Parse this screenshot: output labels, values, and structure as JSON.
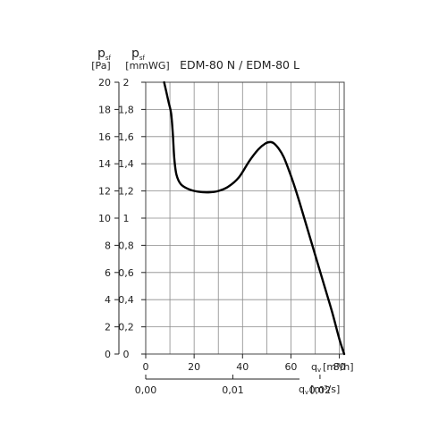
{
  "chart_data": {
    "type": "line",
    "title": "EDM-80 N / EDM-80 L",
    "y_primary": {
      "label_main": "p",
      "label_sub": "sf",
      "unit": "[Pa]",
      "ylim": [
        0,
        20
      ],
      "ticks": [
        "0",
        "2",
        "4",
        "6",
        "8",
        "10",
        "12",
        "14",
        "16",
        "18",
        "20"
      ]
    },
    "y_secondary": {
      "label_main": "p",
      "label_sub": "sf",
      "unit": "[mmWG]",
      "ticks": [
        "0",
        "0,2",
        "0,4",
        "0,6",
        "0,8",
        "1",
        "1,2",
        "1,4",
        "1,6",
        "1,8",
        "2"
      ]
    },
    "x_primary": {
      "label_main": "q",
      "label_sub": "v",
      "unit": "[m³/h]",
      "xlim": [
        0,
        82
      ],
      "ticks": [
        {
          "value": 0,
          "label": "0"
        },
        {
          "value": 20,
          "label": "20"
        },
        {
          "value": 40,
          "label": "40"
        },
        {
          "value": 60,
          "label": "60"
        },
        {
          "value": 80,
          "label": "80"
        }
      ]
    },
    "x_secondary": {
      "label_main": "q",
      "label_sub": "v",
      "unit": "[m³/s]",
      "ticks": [
        {
          "value": 0,
          "label": "0,00"
        },
        {
          "value": 36,
          "label": "0,01"
        },
        {
          "value": 72,
          "label": "0,02"
        }
      ]
    },
    "grid": true,
    "series": [
      {
        "color": "#000000",
        "x": [
          7.6,
          8.5,
          9.5,
          10.5,
          11.2,
          11.8,
          12.7,
          14.5,
          17.5,
          21.5,
          26,
          30,
          34,
          38.5,
          42.8,
          46.5,
          49.5,
          51.5,
          53,
          55,
          57,
          59,
          61,
          63.5,
          66.5,
          70,
          73.5,
          77,
          80,
          82
        ],
        "y": [
          20,
          19.3,
          18.5,
          17.7,
          16.2,
          14.4,
          13.2,
          12.5,
          12.15,
          11.95,
          11.9,
          12,
          12.3,
          13,
          14.2,
          15.05,
          15.5,
          15.6,
          15.5,
          15.1,
          14.5,
          13.6,
          12.6,
          11.2,
          9.4,
          7.3,
          5.2,
          3.1,
          1.1,
          0
        ]
      }
    ]
  }
}
